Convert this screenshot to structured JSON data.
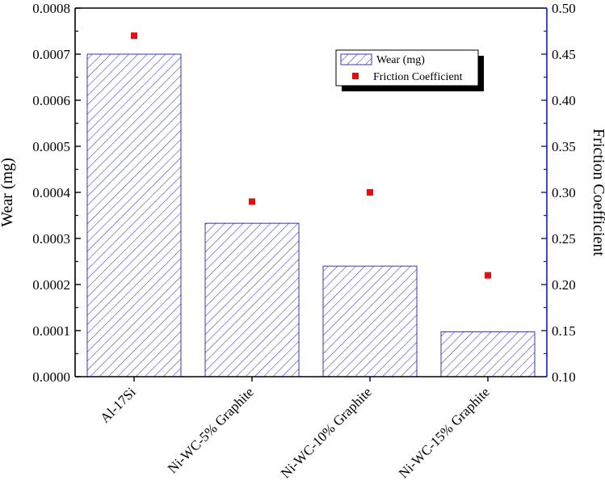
{
  "chart_data": {
    "type": "bar",
    "categories": [
      "Al-17Si",
      "Ni-WC-5% Graphite",
      "Ni-WC-10% Graphite",
      "Ni-WC-15% Graphite"
    ],
    "series": [
      {
        "name": "Wear (mg)",
        "type": "bar",
        "axis": "left",
        "values": [
          0.0007,
          0.000333,
          0.00024,
          9.75e-05
        ],
        "pattern": "diagonal-hatch",
        "color": "#3434d0"
      },
      {
        "name": "Friction Coefficient",
        "type": "scatter",
        "axis": "right",
        "values": [
          0.47,
          0.29,
          0.3,
          0.21
        ],
        "marker": "square",
        "color": "#e01010"
      }
    ],
    "ylabel": "Wear (mg)",
    "ylabel_right": "Friction Coefficient",
    "xlabel": "",
    "title": "",
    "ylim": [
      0,
      0.0008
    ],
    "ylim_right": [
      0.1,
      0.5
    ],
    "yticks": [
      "0.0000",
      "0.0001",
      "0.0002",
      "0.0003",
      "0.0004",
      "0.0005",
      "0.0006",
      "0.0007",
      "0.0008"
    ],
    "yticks_right": [
      "0.10",
      "0.15",
      "0.20",
      "0.25",
      "0.30",
      "0.35",
      "0.40",
      "0.45",
      "0.50"
    ],
    "legend_position": "top-right",
    "grid": false,
    "right_axis_color": "#1a1aa8"
  }
}
